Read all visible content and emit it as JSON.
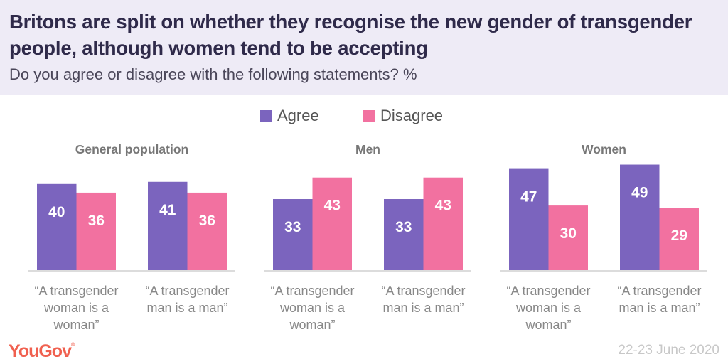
{
  "header": {
    "title": "Britons are split on whether they recognise the new gender of transgender people, although women tend to be accepting",
    "subtitle": "Do you agree or disagree with the following statements? %"
  },
  "footer": {
    "logo": "YouGov",
    "logo_mark": "®",
    "date": "22-23 June 2020"
  },
  "colors": {
    "agree": "#7b64be",
    "disagree": "#f271a0",
    "axis": "#dcdcdc"
  },
  "chart_data": {
    "type": "bar",
    "title": "Britons are split on whether they recognise the new gender of transgender people, although women tend to be accepting",
    "subtitle": "Do you agree or disagree with the following statements? %",
    "legend": [
      "Agree",
      "Disagree"
    ],
    "legend_position": "top-center",
    "grid": false,
    "ylim": [
      0,
      50
    ],
    "categories": [
      "“A transgender woman is a woman”",
      "“A transgender man is a man”"
    ],
    "category_lines": [
      [
        "“A transgender",
        "woman is a",
        "woman”"
      ],
      [
        "“A transgender",
        "man is a man”"
      ]
    ],
    "panels": [
      {
        "name": "General population",
        "series": [
          {
            "name": "Agree",
            "values": [
              40,
              41
            ]
          },
          {
            "name": "Disagree",
            "values": [
              36,
              36
            ]
          }
        ]
      },
      {
        "name": "Men",
        "series": [
          {
            "name": "Agree",
            "values": [
              33,
              33
            ]
          },
          {
            "name": "Disagree",
            "values": [
              43,
              43
            ]
          }
        ]
      },
      {
        "name": "Women",
        "series": [
          {
            "name": "Agree",
            "values": [
              47,
              49
            ]
          },
          {
            "name": "Disagree",
            "values": [
              30,
              29
            ]
          }
        ]
      }
    ]
  }
}
